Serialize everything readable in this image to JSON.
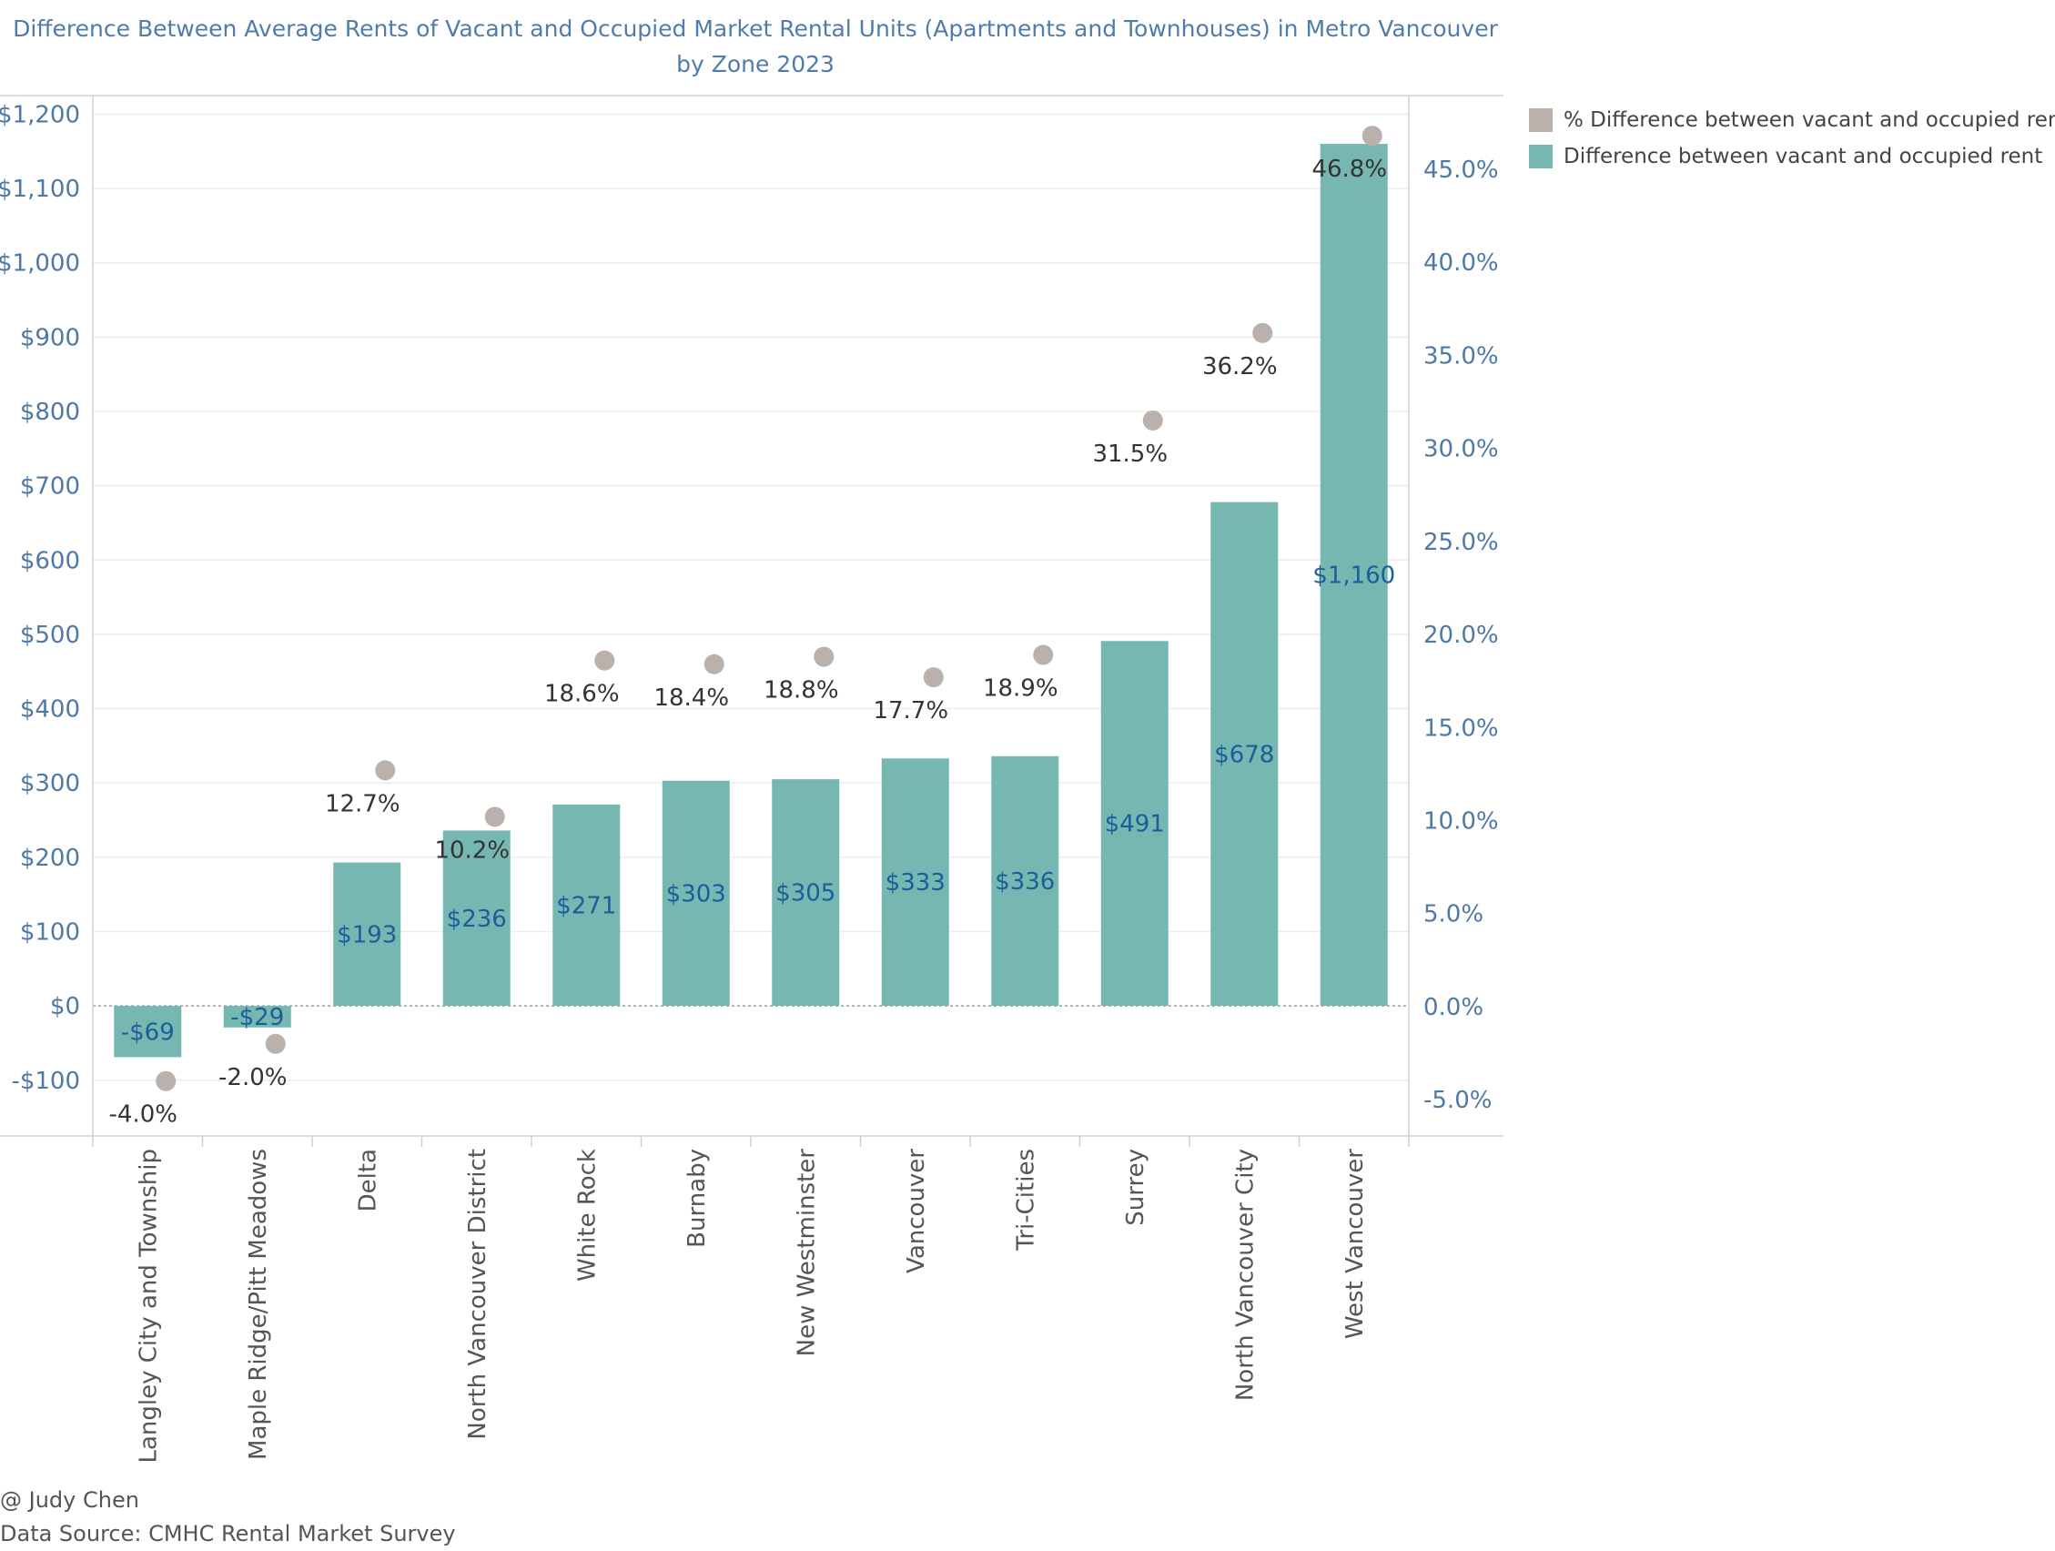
{
  "title_lines": [
    "Difference Between Average Rents of Vacant and Occupied Market Rental Units (Apartments and Townhouses) in Metro Vancouver",
    "by Zone 2023"
  ],
  "legend": [
    {
      "label": "% Difference between vacant and occupied rent",
      "color": "#bab0ac"
    },
    {
      "label": "Difference between vacant and occupied rent",
      "color": "#76b7b2"
    }
  ],
  "footer": {
    "author": "@ Judy Chen",
    "source": "Data Source: CMHC Rental Market Survey"
  },
  "chart_data": {
    "type": "bar",
    "title": "Difference Between Average Rents of Vacant and Occupied Market Rental Units (Apartments and Townhouses) in Metro Vancouver by Zone 2023",
    "categories": [
      "Langley City and Township",
      "Maple Ridge/Pitt Meadows",
      "Delta",
      "North Vancouver District",
      "White Rock",
      "Burnaby",
      "New Westminster",
      "Vancouver",
      "Tri-Cities",
      "Surrey",
      "North Vancouver City",
      "West Vancouver"
    ],
    "series": [
      {
        "name": "Difference between vacant and occupied rent",
        "type": "bar",
        "axis": "left",
        "values": [
          -69,
          -29,
          193,
          236,
          271,
          303,
          305,
          333,
          336,
          491,
          678,
          1160
        ],
        "labels": [
          "-$69",
          "-$29",
          "$193",
          "$236",
          "$271",
          "$303",
          "$305",
          "$333",
          "$336",
          "$491",
          "$678",
          "$1,160"
        ]
      },
      {
        "name": "% Difference between vacant and occupied rent",
        "type": "scatter",
        "axis": "right",
        "values": [
          -4.0,
          -2.0,
          12.7,
          10.2,
          18.6,
          18.4,
          18.8,
          17.7,
          18.9,
          31.5,
          36.2,
          46.8
        ],
        "labels": [
          "-4.0%",
          "-2.0%",
          "12.7%",
          "10.2%",
          "18.6%",
          "18.4%",
          "18.8%",
          "17.7%",
          "18.9%",
          "31.5%",
          "36.2%",
          "46.8%"
        ]
      }
    ],
    "y_left": {
      "lim": [
        -175,
        1225
      ],
      "ticks": [
        -100,
        0,
        100,
        200,
        300,
        400,
        500,
        600,
        700,
        800,
        900,
        1000,
        1100,
        1200
      ],
      "tick_labels": [
        "-$100",
        "$0",
        "$100",
        "$200",
        "$300",
        "$400",
        "$500",
        "$600",
        "$700",
        "$800",
        "$900",
        "$1,000",
        "$1,100",
        "$1,200"
      ]
    },
    "y_right": {
      "lim": [
        -6.95,
        48.96
      ],
      "ticks": [
        -5,
        0,
        5,
        10,
        15,
        20,
        25,
        30,
        35,
        40,
        45
      ],
      "tick_labels": [
        "-5.0%",
        "0.0%",
        "5.0%",
        "10.0%",
        "15.0%",
        "20.0%",
        "25.0%",
        "30.0%",
        "35.0%",
        "40.0%",
        "45.0%"
      ]
    },
    "grid": true,
    "legend_position": "top-right"
  }
}
